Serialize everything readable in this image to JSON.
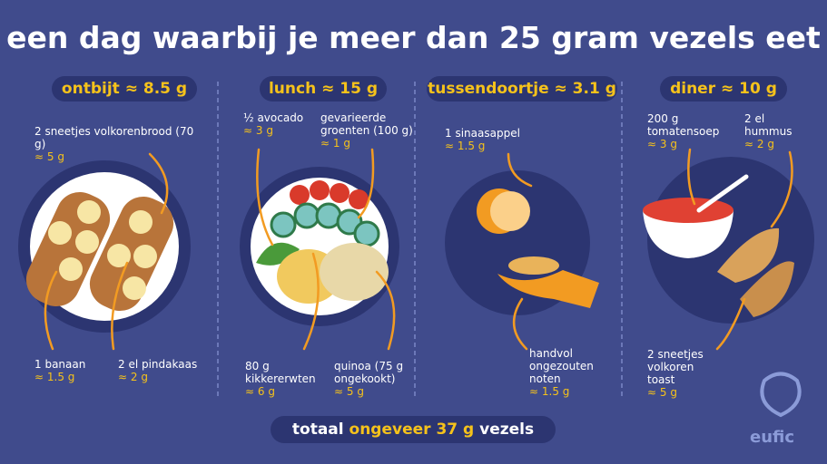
{
  "header": {
    "title": "een dag waarbij je meer dan 25 gram vezels eet"
  },
  "meals": [
    {
      "heading": "ontbijt ≈ 8.5 g",
      "items": [
        {
          "label": "2 sneetjes volkorenbrood (70 g)",
          "amount": "≈ 5 g"
        },
        {
          "label": "1 banaan",
          "amount": "≈ 1.5 g"
        },
        {
          "label": "2 el pindakaas",
          "amount": "≈ 2 g"
        }
      ]
    },
    {
      "heading": "lunch ≈ 15 g",
      "items": [
        {
          "label": "½ avocado",
          "amount": "≈ 3 g"
        },
        {
          "label": "gevarieerde groenten (100 g)",
          "amount": "≈ 1 g"
        },
        {
          "label": "80 g kikkererwten",
          "amount": "≈ 6 g"
        },
        {
          "label": "quinoa (75 g ongekookt)",
          "amount": "≈ 5 g"
        }
      ]
    },
    {
      "heading": "tussendoortje ≈ 3.1 g",
      "items": [
        {
          "label": "1 sinaasappel",
          "amount": "≈ 1.5 g"
        },
        {
          "label": "handvol ongezouten noten",
          "amount": "≈ 1.5 g"
        }
      ]
    },
    {
      "heading": "diner ≈ 10 g",
      "items": [
        {
          "label": "200 g tomatensoep",
          "amount": "≈ 3 g"
        },
        {
          "label": "2 el hummus",
          "amount": "≈ 2 g"
        },
        {
          "label": "2 sneetjes volkoren toast",
          "amount": "≈ 5 g"
        }
      ]
    }
  ],
  "footer": {
    "prefix": "totaal",
    "highlight": "ongeveer 37 g",
    "suffix": "vezels",
    "logo": "eufic"
  }
}
